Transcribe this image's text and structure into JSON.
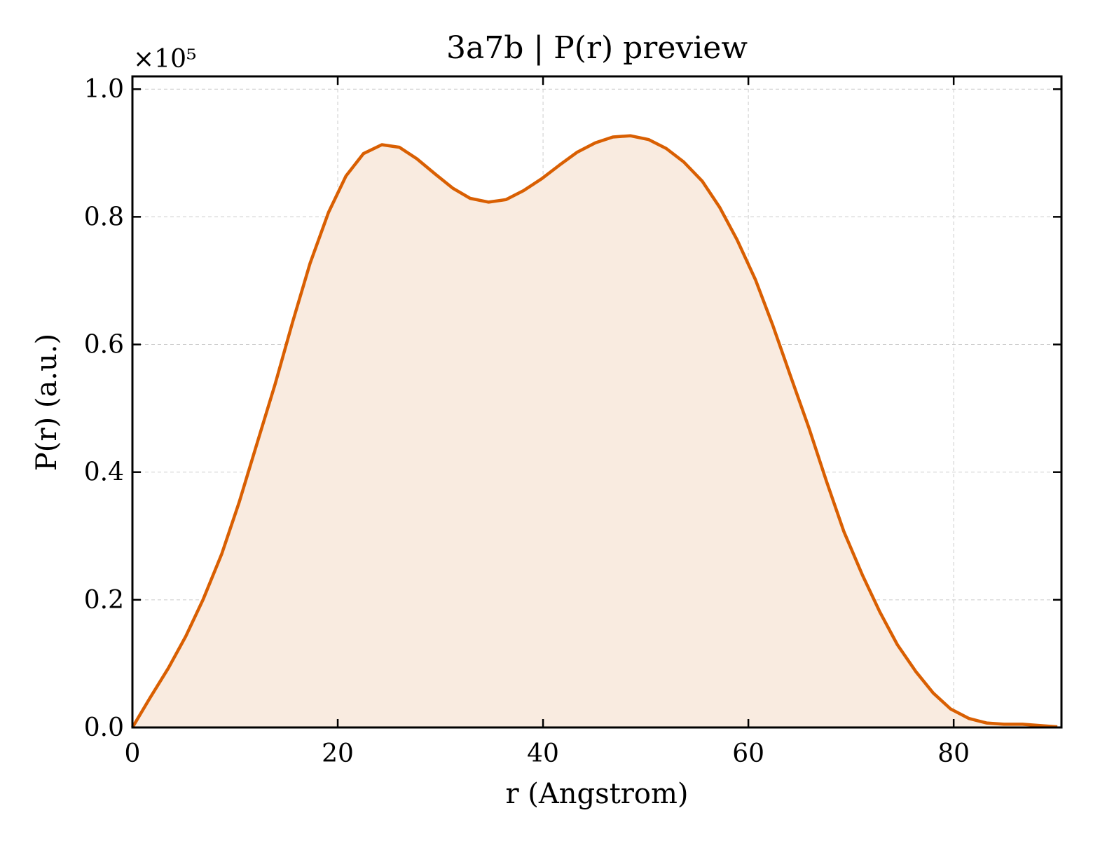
{
  "chart_data": {
    "type": "area",
    "title": "3a7b | P(r) preview",
    "xlabel": "r (Angstrom)",
    "ylabel": "P(r) (a.u.)",
    "y_offset_label": "×10⁵",
    "y_scale": 100000,
    "xlim": [
      0,
      90.5
    ],
    "ylim": [
      0,
      1.02
    ],
    "x_ticks": [
      0,
      20,
      40,
      60,
      80
    ],
    "x_tick_labels": [
      "0",
      "20",
      "40",
      "60",
      "80"
    ],
    "y_ticks": [
      0.0,
      0.2,
      0.4,
      0.6,
      0.8,
      1.0
    ],
    "y_tick_labels": [
      "0.0",
      "0.2",
      "0.4",
      "0.6",
      "0.8",
      "1.0"
    ],
    "grid": true,
    "line_color": "#d95f02",
    "fill_color": "#f9ebe0",
    "series": [
      {
        "x": [
          0.0,
          1.7,
          3.5,
          5.2,
          6.9,
          8.7,
          10.4,
          12.1,
          13.9,
          15.6,
          17.3,
          19.1,
          20.8,
          22.5,
          24.3,
          26.0,
          27.7,
          29.5,
          31.2,
          32.9,
          34.7,
          36.4,
          38.1,
          39.9,
          41.6,
          43.3,
          45.1,
          46.8,
          48.5,
          50.3,
          52.0,
          53.7,
          55.5,
          57.2,
          58.9,
          60.7,
          62.4,
          64.1,
          65.9,
          67.6,
          69.3,
          71.1,
          72.8,
          74.5,
          76.3,
          78.0,
          79.7,
          81.5,
          83.2,
          84.9,
          86.7,
          88.4,
          90.1
        ],
        "y": [
          0.0,
          0.046,
          0.093,
          0.143,
          0.201,
          0.272,
          0.353,
          0.443,
          0.538,
          0.635,
          0.727,
          0.807,
          0.864,
          0.899,
          0.913,
          0.909,
          0.891,
          0.867,
          0.845,
          0.829,
          0.823,
          0.827,
          0.841,
          0.86,
          0.881,
          0.901,
          0.916,
          0.925,
          0.927,
          0.921,
          0.907,
          0.886,
          0.856,
          0.815,
          0.764,
          0.701,
          0.629,
          0.551,
          0.469,
          0.386,
          0.307,
          0.239,
          0.181,
          0.13,
          0.088,
          0.054,
          0.029,
          0.014,
          0.007,
          0.005,
          0.005,
          0.003,
          0.001
        ]
      }
    ]
  }
}
